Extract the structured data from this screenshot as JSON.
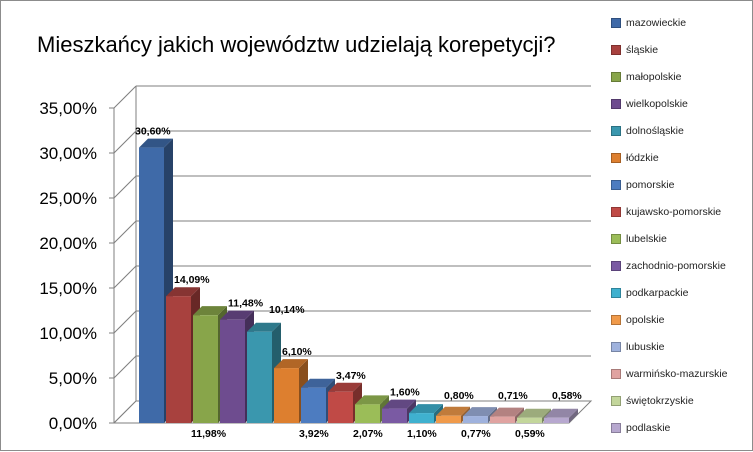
{
  "chart_data": {
    "type": "bar",
    "title": "Mieszkańcy jakich województw udzielają korepetycji?",
    "categories": [
      "mazowieckie",
      "śląskie",
      "małopolskie",
      "wielkopolskie",
      "dolnośląskie",
      "łódzkie",
      "pomorskie",
      "kujawsko-pomorskie",
      "lubelskie",
      "zachodnio-pomorskie",
      "podkarpackie",
      "opolskie",
      "lubuskie",
      "warmińsko-mazurskie",
      "świętokrzyskie",
      "podlaskie"
    ],
    "values": [
      30.6,
      14.09,
      11.98,
      11.48,
      10.14,
      6.1,
      3.92,
      3.47,
      2.07,
      1.6,
      1.1,
      0.8,
      0.77,
      0.71,
      0.59,
      0.58
    ],
    "data_labels": [
      "30,60%",
      "14,09%",
      "11,98%",
      "11,48%",
      "10,14%",
      "6,10%",
      "3,92%",
      "3,47%",
      "2,07%",
      "1,60%",
      "1,10%",
      "0,80%",
      "0,77%",
      "0,71%",
      "0,59%",
      "0,58%"
    ],
    "colors": [
      "#3f6aa8",
      "#a8413e",
      "#88a54a",
      "#6e4c8f",
      "#3a97ae",
      "#dd7f2f",
      "#4d7cc0",
      "#c04a46",
      "#9bbd58",
      "#7a5aa3",
      "#3fb1cf",
      "#f09a4a",
      "#9fb2dd",
      "#e0a3a1",
      "#c3d69b",
      "#b7a8cf"
    ],
    "ylim": [
      0,
      35
    ],
    "yticks": [
      "0,00%",
      "5,00%",
      "10,00%",
      "15,00%",
      "20,00%",
      "25,00%",
      "30,00%",
      "35,00%"
    ],
    "grid": true,
    "legend_position": "right"
  }
}
